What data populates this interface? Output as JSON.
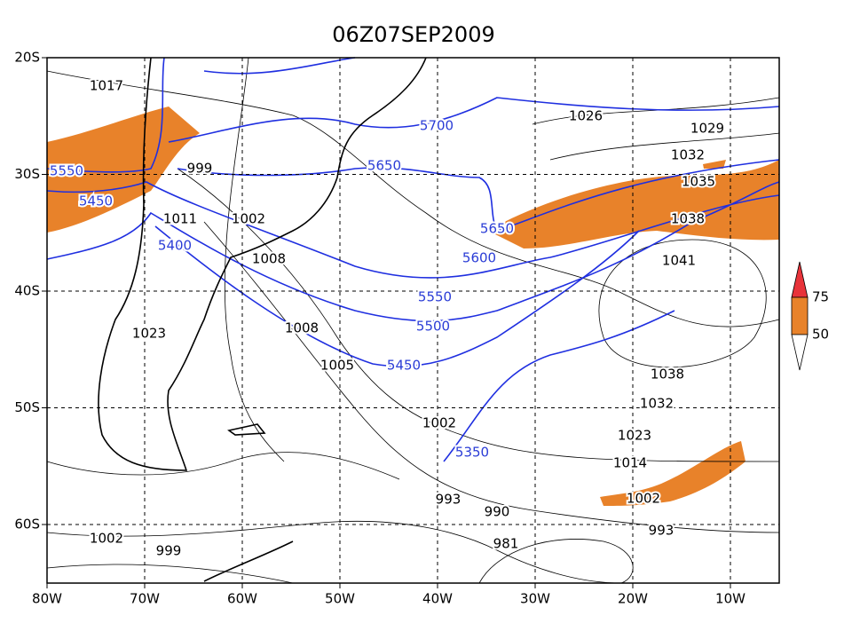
{
  "title": "06Z07SEP2009",
  "lon_labels": [
    "80W",
    "70W",
    "60W",
    "50W",
    "40W",
    "30W",
    "20W",
    "10W"
  ],
  "lat_labels": [
    "20S",
    "30S",
    "40S",
    "50S",
    "60S"
  ],
  "isobar_labels": [
    "1017",
    "999",
    "1011",
    "1002",
    "1008",
    "1023",
    "1008",
    "1005",
    "1002",
    "993",
    "990",
    "981",
    "1002",
    "999",
    "1026",
    "1029",
    "1032",
    "1035",
    "1038",
    "1041",
    "1038",
    "1032",
    "1023",
    "1014",
    "1002",
    "993"
  ],
  "height_labels": [
    "5700",
    "5650",
    "5550",
    "5450",
    "5400",
    "5650",
    "5600",
    "5550",
    "5500",
    "5450",
    "5350"
  ],
  "legend_labels": [
    "75",
    "50"
  ]
}
